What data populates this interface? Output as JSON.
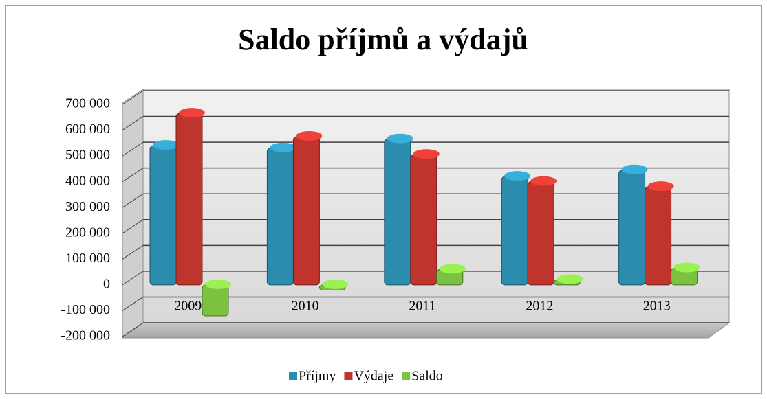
{
  "chart_data": {
    "type": "bar",
    "title": "Saldo příjmů a výdajů",
    "categories": [
      "2009",
      "2010",
      "2011",
      "2012",
      "2013"
    ],
    "series": [
      {
        "name": "Příjmy",
        "color": "#2b8cae",
        "values": [
          540000,
          530000,
          565000,
          420000,
          445000
        ]
      },
      {
        "name": "Výdaje",
        "color": "#c0342e",
        "values": [
          665000,
          575000,
          505000,
          400000,
          380000
        ]
      },
      {
        "name": "Saldo",
        "color": "#7cc140",
        "values": [
          -120000,
          -20000,
          60000,
          20000,
          65000
        ]
      }
    ],
    "ylim": [
      -200000,
      700000
    ],
    "yticks": [
      {
        "value": -200000,
        "label": "-200 000"
      },
      {
        "value": -100000,
        "label": "-100 000"
      },
      0,
      {
        "value": 100000,
        "label": "100 000"
      },
      {
        "value": 200000,
        "label": "200 000"
      },
      {
        "value": 300000,
        "label": "300 000"
      },
      {
        "value": 400000,
        "label": "400 000"
      },
      {
        "value": 500000,
        "label": "500 000"
      },
      {
        "value": 600000,
        "label": "600 000"
      },
      {
        "value": 700000,
        "label": "700 000"
      }
    ],
    "grid": true,
    "legend": "bottom"
  }
}
